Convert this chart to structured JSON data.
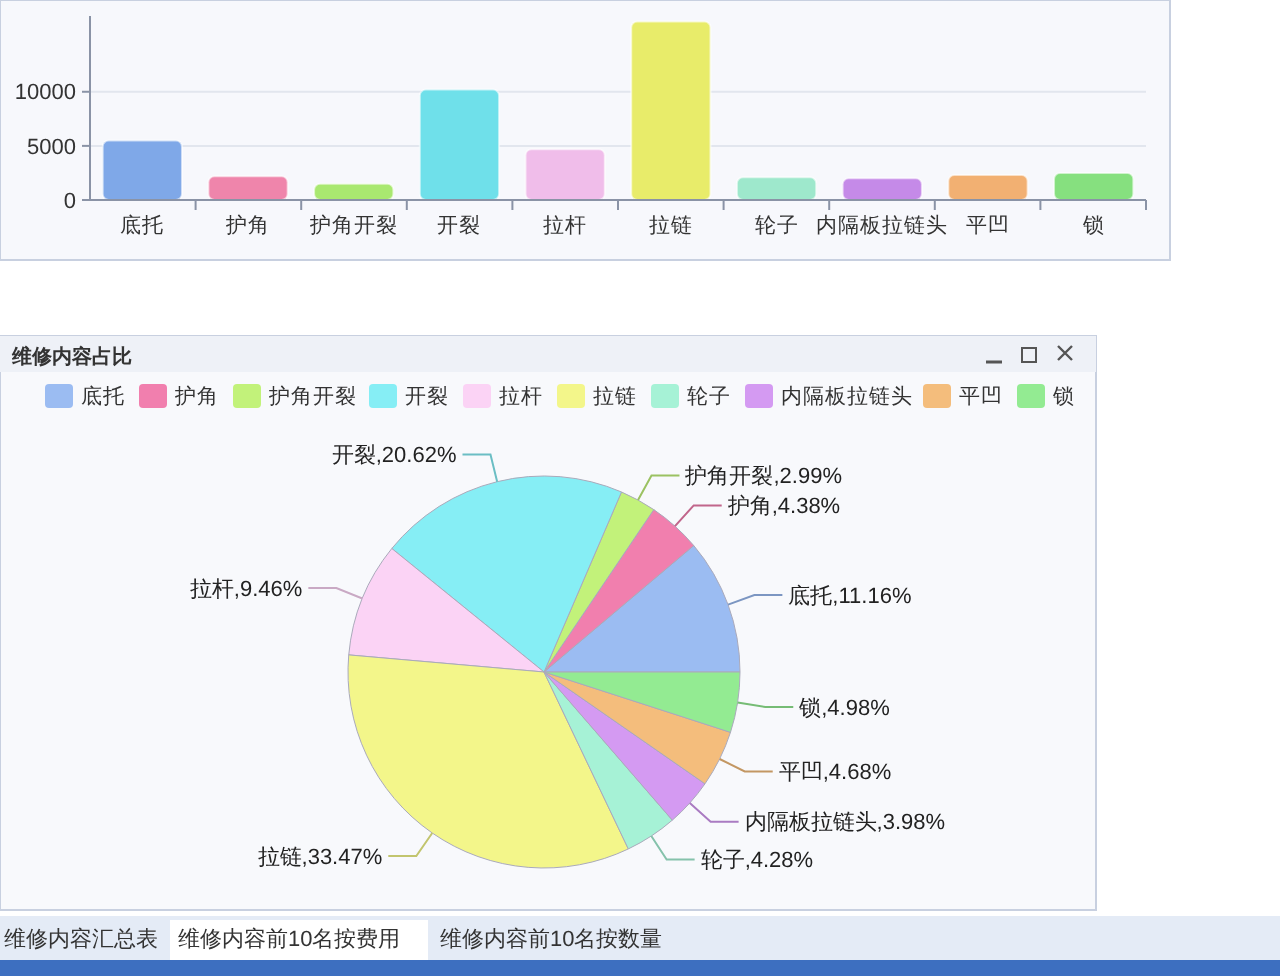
{
  "chart_data": [
    {
      "type": "bar",
      "categories": [
        "底托",
        "护角",
        "护角开裂",
        "开裂",
        "拉杆",
        "拉链",
        "轮子",
        "内隔板拉链头",
        "平凹",
        "锁"
      ],
      "values": [
        5500,
        2200,
        1500,
        10200,
        4700,
        16500,
        2100,
        2000,
        2300,
        2500
      ],
      "colors": [
        "#7fa8e8",
        "#ef85ab",
        "#a9e870",
        "#6fe0ea",
        "#f0bdea",
        "#e8ec6a",
        "#9ee8cc",
        "#c58ae8",
        "#f2b072",
        "#86e07f"
      ],
      "ylim": [
        0,
        17000
      ],
      "yticks": [
        0,
        5000,
        10000
      ],
      "grid": "y"
    },
    {
      "type": "pie",
      "title": "维修内容占比",
      "categories": [
        "底托",
        "护角",
        "护角开裂",
        "开裂",
        "拉杆",
        "拉链",
        "轮子",
        "内隔板拉链头",
        "平凹",
        "锁"
      ],
      "values": [
        11.16,
        4.38,
        2.99,
        20.62,
        9.46,
        33.47,
        4.28,
        3.98,
        4.68,
        4.98
      ],
      "colors": [
        "#9bbcf2",
        "#f17fae",
        "#c2f27a",
        "#86eef5",
        "#fbd3f5",
        "#f3f68a",
        "#a6f2d6",
        "#d49af2",
        "#f4bd7c",
        "#93eb92"
      ],
      "value_labels": [
        "底托,11.16%",
        "护角,4.38%",
        "护角开裂,2.99%",
        "开裂,20.62%",
        "拉杆,9.46%",
        "拉链,33.47%",
        "轮子,4.28%",
        "内隔板拉链头,3.98%",
        "平凹,4.68%",
        "锁,4.98%"
      ],
      "legend": "top right",
      "annotations": [
        "维修内容汇总表",
        "维修内容前10名按费用",
        "维修内容前10名按数量"
      ]
    }
  ]
}
